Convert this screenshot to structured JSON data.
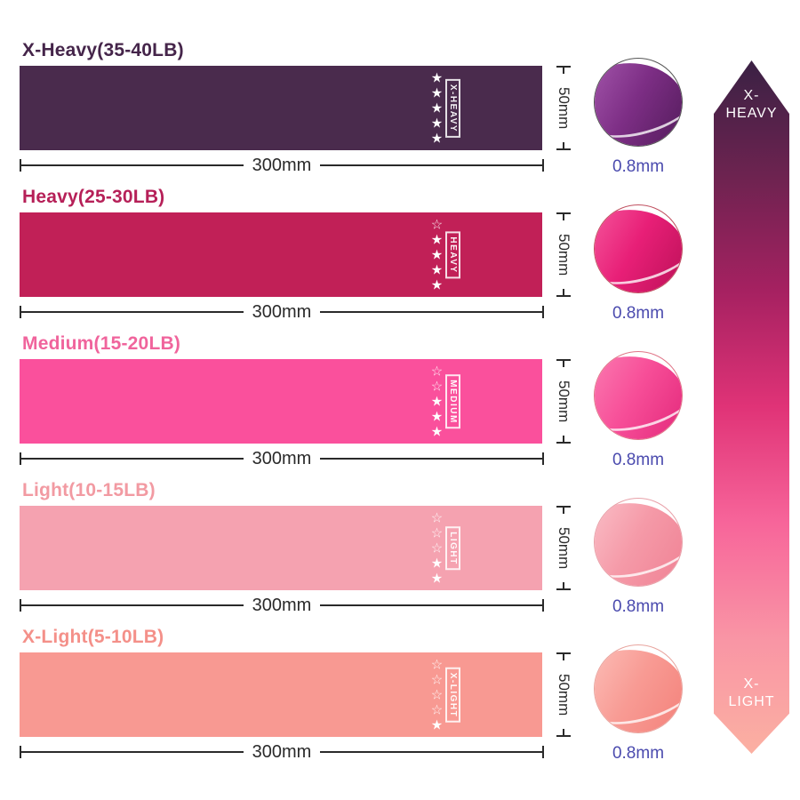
{
  "measurements": {
    "width_label": "300mm",
    "height_label": "50mm",
    "thickness_label": "0.8mm",
    "measure_color": "#2a2a2a",
    "thickness_label_color": "#4a4aae"
  },
  "glyphs": {
    "star_filled": "★",
    "star_empty": "☆"
  },
  "bands": [
    {
      "title": "X-Heavy(35-40LB)",
      "label": "X-HEAVY",
      "stars_filled": 5,
      "stars_total": 5,
      "band_color": "#4a2b4d",
      "title_color": "#45254a",
      "thumb_color": "#7d2e85",
      "thumb_dark": "#4f1a57",
      "thumb_light": "#a85bb0",
      "ring_color": "#555555"
    },
    {
      "title": "Heavy(25-30LB)",
      "label": "HEAVY",
      "stars_filled": 4,
      "stars_total": 5,
      "band_color": "#c12057",
      "title_color": "#b62058",
      "thumb_color": "#e81f77",
      "thumb_dark": "#b80f55",
      "thumb_light": "#f75fa2",
      "ring_color": "#c05060"
    },
    {
      "title": "Medium(15-20LB)",
      "label": "MEDIUM",
      "stars_filled": 3,
      "stars_total": 5,
      "band_color": "#fa509c",
      "title_color": "#f0649c",
      "thumb_color": "#f74e98",
      "thumb_dark": "#e12578",
      "thumb_light": "#fb82b5",
      "ring_color": "#e07588"
    },
    {
      "title": "Light(10-15LB)",
      "label": "LIGHT",
      "stars_filled": 2,
      "stars_total": 5,
      "band_color": "#f5a2b0",
      "title_color": "#f29aa2",
      "thumb_color": "#f59aa8",
      "thumb_dark": "#ef7f92",
      "thumb_light": "#fbc4cc",
      "ring_color": "#e8a0a8"
    },
    {
      "title": "X-Light(5-10LB)",
      "label": "X-LIGHT",
      "stars_filled": 1,
      "stars_total": 5,
      "band_color": "#f89992",
      "title_color": "#f49089",
      "thumb_color": "#f89b94",
      "thumb_dark": "#f37f78",
      "thumb_light": "#fcc3bd",
      "ring_color": "#e8a49e"
    }
  ],
  "scale_arrow": {
    "top_line1": "X-",
    "top_line2": "HEAVY",
    "bottom_line1": "X-",
    "bottom_line2": "LIGHT",
    "gradient": [
      "#3a2144",
      "#6d2350",
      "#a62161",
      "#e03377",
      "#f7659a",
      "#f995a5",
      "#fbb0a2"
    ]
  }
}
